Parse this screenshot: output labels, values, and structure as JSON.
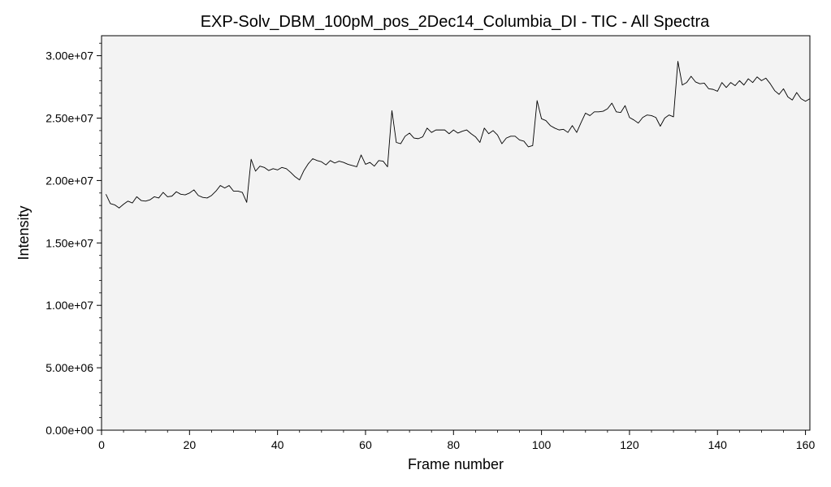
{
  "chart_data": {
    "type": "line",
    "title": "EXP-Solv_DBM_100pM_pos_2Dec14_Columbia_DI - TIC - All Spectra",
    "xlabel": "Frame number",
    "ylabel": "Intensity",
    "xlim": [
      0,
      161
    ],
    "ylim": [
      0,
      31600000
    ],
    "xticks": [
      0,
      20,
      40,
      60,
      80,
      100,
      120,
      140,
      160
    ],
    "xtick_labels": [
      "0",
      "20",
      "40",
      "60",
      "80",
      "100",
      "120",
      "140",
      "160"
    ],
    "yticks": [
      0,
      5000000,
      10000000,
      15000000,
      20000000,
      25000000,
      30000000
    ],
    "ytick_labels": [
      "0.00e+00",
      "5.00e+06",
      "1.00e+07",
      "1.50e+07",
      "2.00e+07",
      "2.50e+07",
      "3.00e+07"
    ],
    "grid": false,
    "colors": {
      "line": "#000000",
      "plot_bg": "#f3f3f3",
      "axes": "#000000"
    },
    "series": [
      {
        "x": [
          1,
          2,
          3,
          4,
          5,
          6,
          7,
          8,
          9,
          10,
          11,
          12,
          13,
          14,
          15,
          16,
          17,
          18,
          19,
          20,
          21,
          22,
          23,
          24,
          25,
          26,
          27,
          28,
          29,
          30,
          31,
          32,
          33,
          34,
          35,
          36,
          37,
          38,
          39,
          40,
          41,
          42,
          43,
          44,
          45,
          46,
          47,
          48,
          49,
          50,
          51,
          52,
          53,
          54,
          55,
          56,
          57,
          58,
          59,
          60,
          61,
          62,
          63,
          64,
          65,
          66,
          67,
          68,
          69,
          70,
          71,
          72,
          73,
          74,
          75,
          76,
          77,
          78,
          79,
          80,
          81,
          82,
          83,
          84,
          85,
          86,
          87,
          88,
          89,
          90,
          91,
          92,
          93,
          94,
          95,
          96,
          97,
          98,
          99,
          100,
          101,
          102,
          103,
          104,
          105,
          106,
          107,
          108,
          109,
          110,
          111,
          112,
          113,
          114,
          115,
          116,
          117,
          118,
          119,
          120,
          121,
          122,
          123,
          124,
          125,
          126,
          127,
          128,
          129,
          130,
          131,
          132,
          133,
          134,
          135,
          136,
          137,
          138,
          139,
          140,
          141,
          142,
          143,
          144,
          145,
          146,
          147,
          148,
          149,
          150,
          151,
          152,
          153,
          154,
          155,
          156,
          157,
          158,
          159,
          160,
          161
        ],
        "y": [
          18900000,
          18150000,
          18050000,
          17800000,
          18100000,
          18350000,
          18200000,
          18700000,
          18400000,
          18350000,
          18450000,
          18700000,
          18600000,
          19050000,
          18700000,
          18750000,
          19100000,
          18900000,
          18850000,
          19000000,
          19250000,
          18800000,
          18650000,
          18600000,
          18800000,
          19150000,
          19600000,
          19400000,
          19600000,
          19150000,
          19150000,
          19050000,
          18250000,
          21700000,
          20750000,
          21150000,
          21050000,
          20800000,
          20950000,
          20850000,
          21050000,
          20950000,
          20650000,
          20300000,
          20050000,
          20800000,
          21350000,
          21750000,
          21600000,
          21500000,
          21250000,
          21600000,
          21400000,
          21550000,
          21450000,
          21300000,
          21200000,
          21100000,
          22050000,
          21300000,
          21450000,
          21150000,
          21600000,
          21550000,
          21100000,
          25600000,
          23050000,
          22950000,
          23550000,
          23800000,
          23400000,
          23350000,
          23500000,
          24200000,
          23850000,
          24050000,
          24050000,
          24050000,
          23750000,
          24050000,
          23800000,
          23950000,
          24050000,
          23750000,
          23500000,
          23050000,
          24200000,
          23750000,
          24000000,
          23650000,
          22950000,
          23400000,
          23550000,
          23550000,
          23250000,
          23150000,
          22700000,
          22800000,
          26400000,
          24950000,
          24800000,
          24400000,
          24200000,
          24050000,
          24100000,
          23850000,
          24400000,
          23850000,
          24650000,
          25400000,
          25200000,
          25500000,
          25500000,
          25550000,
          25750000,
          26200000,
          25500000,
          25450000,
          26000000,
          25050000,
          24850000,
          24600000,
          25050000,
          25250000,
          25200000,
          25050000,
          24350000,
          25000000,
          25250000,
          25100000,
          29550000,
          27650000,
          27850000,
          28350000,
          27900000,
          27750000,
          27800000,
          27350000,
          27300000,
          27150000,
          27850000,
          27450000,
          27850000,
          27600000,
          28000000,
          27650000,
          28150000,
          27850000,
          28300000,
          28000000,
          28200000,
          27750000,
          27200000,
          26900000,
          27350000,
          26700000,
          26450000,
          27050000,
          26550000,
          26350000,
          26550000
        ]
      }
    ]
  }
}
